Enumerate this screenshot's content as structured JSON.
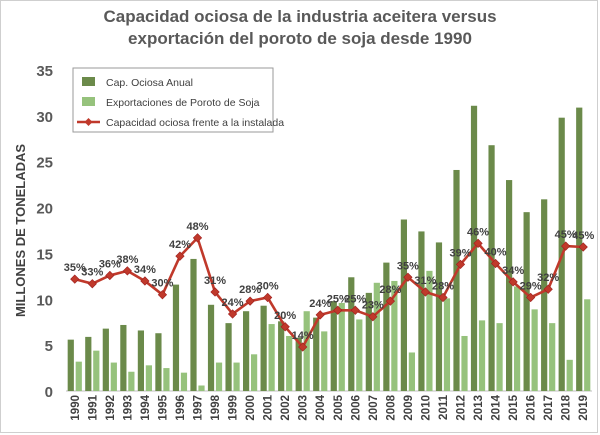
{
  "chart_data": {
    "type": "bar",
    "title": [
      "Capacidad ociosa de la industria aceitera versus",
      "exportación del poroto de soja desde 1990"
    ],
    "ylabel": "MILLONES DE TONELADAS",
    "ylim": [
      0,
      35
    ],
    "yticks": [
      0,
      5,
      10,
      15,
      20,
      25,
      30,
      35
    ],
    "grid": false,
    "legend_position": "top-left",
    "categories": [
      "1990",
      "1991",
      "1992",
      "1993",
      "1994",
      "1995",
      "1996",
      "1997",
      "1998",
      "1999",
      "2000",
      "2001",
      "2002",
      "2003",
      "2004",
      "2005",
      "2006",
      "2007",
      "2008",
      "2009",
      "2010",
      "2011",
      "2012",
      "2013",
      "2014",
      "2015",
      "2016",
      "2017",
      "2018",
      "2019"
    ],
    "series": [
      {
        "name": "Cap. Ociosa Anual",
        "type": "bar",
        "color": "#6b8a4a",
        "values": [
          5.6,
          5.9,
          6.8,
          7.2,
          6.6,
          6.3,
          11.6,
          14.4,
          9.4,
          7.4,
          8.7,
          9.3,
          7.6,
          5.8,
          8.0,
          9.8,
          12.4,
          10.7,
          14.0,
          18.7,
          17.4,
          16.2,
          24.1,
          31.1,
          26.8,
          23.0,
          19.5,
          20.9,
          29.8,
          30.9
        ]
      },
      {
        "name": "Exportaciones de Poroto de Soja",
        "type": "bar",
        "color": "#96c27c",
        "values": [
          3.2,
          4.4,
          3.1,
          2.1,
          2.8,
          2.5,
          2.0,
          0.6,
          3.1,
          3.1,
          4.0,
          7.3,
          6.0,
          8.7,
          6.5,
          9.6,
          7.8,
          11.8,
          12.0,
          4.2,
          13.1,
          10.1,
          6.0,
          7.7,
          7.4,
          11.4,
          8.9,
          7.4,
          3.4,
          10.0
        ]
      },
      {
        "name": "Capacidad ociosa frente a la instalada",
        "type": "line",
        "color": "#c0392b",
        "values": [
          12.2,
          11.7,
          12.6,
          13.1,
          12.0,
          10.5,
          14.7,
          16.7,
          10.8,
          8.4,
          9.8,
          10.2,
          7.0,
          4.8,
          8.3,
          8.8,
          8.8,
          8.1,
          9.8,
          12.4,
          10.8,
          10.2,
          13.8,
          16.1,
          13.9,
          11.9,
          10.2,
          11.1,
          15.8,
          15.7
        ],
        "labels": [
          "35%",
          "33%",
          "36%",
          "38%",
          "34%",
          "30%",
          "42%",
          "48%",
          "31%",
          "24%",
          "28%",
          "30%",
          "20%",
          "14%",
          "24%",
          "25%",
          "25%",
          "23%",
          "28%",
          "35%",
          "31%",
          "28%",
          "39%",
          "46%",
          "40%",
          "34%",
          "29%",
          "32%",
          "45%",
          "45%"
        ]
      }
    ]
  }
}
